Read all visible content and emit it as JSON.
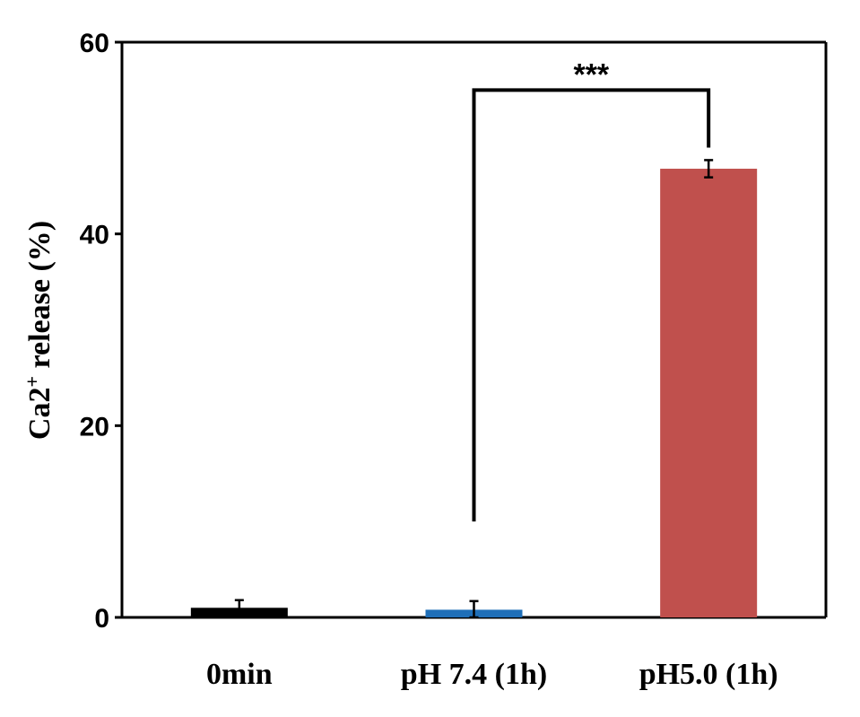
{
  "chart_data": {
    "type": "bar",
    "categories": [
      "0min",
      "pH 7.4 (1h)",
      "pH5.0 (1h)"
    ],
    "values": [
      1.0,
      0.8,
      46.8
    ],
    "errors": [
      0.8,
      0.9,
      0.9
    ],
    "colors": [
      "#000000",
      "#1F6FB8",
      "#C0504D"
    ],
    "ylabel_main": "Ca2",
    "ylabel_sup": "+",
    "ylabel_rest": " release (%)",
    "ylim": [
      0,
      60
    ],
    "yticks": [
      "0",
      "20",
      "40",
      "60"
    ],
    "ytick_values": [
      0,
      20,
      40,
      60
    ],
    "grid": false,
    "significance": {
      "from_category": 1,
      "to_category": 2,
      "label": "***",
      "bracket_y": 55,
      "left_start_y": 10,
      "right_start_y": 49
    }
  }
}
